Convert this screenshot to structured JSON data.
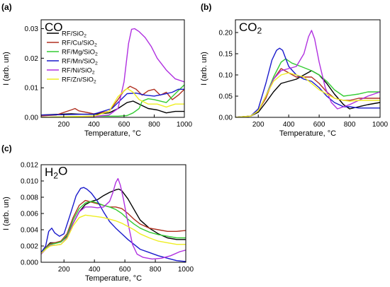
{
  "colors": {
    "RF/SiO2": "#000000",
    "RF/Cu/SiO2": "#b03020",
    "RF/Mg/SiO2": "#33cc33",
    "RF/Mn/SiO2": "#1a1acc",
    "RF/Ni/SiO2": "#b030e0",
    "RF/Zn/SiO2": "#eeee22"
  },
  "chart_data": [
    {
      "type": "line",
      "panel_letter": "(a)",
      "title": "CO",
      "xlabel": "Temperature, °C",
      "ylabel": "I (arb. un)",
      "xlim": [
        50,
        1000
      ],
      "ylim": [
        0,
        0.033
      ],
      "xticks": [
        "200",
        "400",
        "600",
        "800",
        "1000"
      ],
      "xtick_values": [
        200,
        400,
        600,
        800,
        1000
      ],
      "yticks": [
        "0.00",
        "0.01",
        "0.02",
        "0.03"
      ],
      "ytick_values": [
        0,
        0.01,
        0.02,
        0.03
      ],
      "legend": [
        "RF/SiO2",
        "RF/Cu/SiO2",
        "RF/Mg/SiO2",
        "RF/Mn/SiO2",
        "RF/Ni/SiO2",
        "RF/Zn/SiO2"
      ],
      "series": [
        {
          "name": "RF/SiO2",
          "x": [
            50,
            150,
            250,
            300,
            400,
            500,
            560,
            620,
            660,
            700,
            760,
            820,
            880,
            940,
            1000
          ],
          "y": [
            0.0008,
            0.001,
            0.0012,
            0.0011,
            0.001,
            0.0015,
            0.003,
            0.005,
            0.0055,
            0.0045,
            0.003,
            0.0025,
            0.0015,
            0.002,
            0.002
          ]
        },
        {
          "name": "RF/Cu/SiO2",
          "x": [
            50,
            150,
            220,
            250,
            275,
            300,
            400,
            500,
            560,
            600,
            640,
            680,
            720,
            760,
            800,
            840,
            880,
            920,
            960,
            1000
          ],
          "y": [
            0.0005,
            0.0008,
            0.002,
            0.0025,
            0.003,
            0.0022,
            0.0012,
            0.002,
            0.006,
            0.009,
            0.0105,
            0.0095,
            0.0075,
            0.009,
            0.0095,
            0.0075,
            0.0085,
            0.006,
            0.0075,
            0.0095
          ]
        },
        {
          "name": "RF/Mg/SiO2",
          "x": [
            50,
            200,
            400,
            560,
            620,
            660,
            700,
            720,
            760,
            800,
            880,
            940,
            1000
          ],
          "y": [
            0,
            0.0002,
            0.0004,
            0.0004,
            0.0006,
            0.0015,
            0.003,
            0.0055,
            0.0063,
            0.006,
            0.005,
            0.008,
            0.011
          ]
        },
        {
          "name": "RF/Mn/SiO2",
          "x": [
            50,
            200,
            400,
            520,
            580,
            620,
            680,
            740,
            800,
            860,
            920,
            960,
            1000
          ],
          "y": [
            0.0008,
            0.0009,
            0.0011,
            0.003,
            0.006,
            0.008,
            0.0082,
            0.0075,
            0.0072,
            0.0078,
            0.0085,
            0.0095,
            0.0095
          ]
        },
        {
          "name": "RF/Ni/SiO2",
          "x": [
            50,
            200,
            400,
            500,
            560,
            600,
            630,
            650,
            670,
            700,
            740,
            780,
            820,
            880,
            940,
            1000
          ],
          "y": [
            0,
            0.0001,
            0.0003,
            0.0008,
            0.003,
            0.012,
            0.025,
            0.0298,
            0.03,
            0.029,
            0.027,
            0.024,
            0.02,
            0.016,
            0.013,
            0.012
          ]
        },
        {
          "name": "RF/Zn/SiO2",
          "x": [
            50,
            200,
            400,
            500,
            560,
            620,
            660,
            700,
            760,
            820,
            880,
            940,
            1000
          ],
          "y": [
            0,
            0.0002,
            0.0004,
            0.002,
            0.007,
            0.0098,
            0.0085,
            0.006,
            0.0045,
            0.0045,
            0.0035,
            0.0045,
            0.0045
          ]
        }
      ]
    },
    {
      "type": "line",
      "panel_letter": "(b)",
      "title": "CO2",
      "xlabel": "Temperature, °C",
      "ylabel": "I (arb. un)",
      "xlim": [
        50,
        1000
      ],
      "ylim": [
        0,
        0.23
      ],
      "xticks": [
        "200",
        "400",
        "600",
        "800",
        "1000"
      ],
      "xtick_values": [
        200,
        400,
        600,
        800,
        1000
      ],
      "yticks": [
        "0.00",
        "0.05",
        "0.10",
        "0.15",
        "0.20"
      ],
      "ytick_values": [
        0,
        0.05,
        0.1,
        0.15,
        0.2
      ],
      "series": [
        {
          "name": "RF/SiO2",
          "x": [
            50,
            150,
            200,
            250,
            300,
            350,
            400,
            450,
            500,
            550,
            600,
            650,
            700,
            760,
            800,
            860,
            920,
            1000
          ],
          "y": [
            0,
            0.003,
            0.012,
            0.035,
            0.06,
            0.08,
            0.085,
            0.09,
            0.1,
            0.11,
            0.1,
            0.08,
            0.055,
            0.03,
            0.02,
            0.025,
            0.03,
            0.035
          ]
        },
        {
          "name": "RF/Cu/SiO2",
          "x": [
            50,
            150,
            200,
            250,
            300,
            350,
            400,
            450,
            500,
            550,
            600,
            650,
            700,
            760,
            800,
            860,
            920,
            1000
          ],
          "y": [
            0,
            0.003,
            0.015,
            0.045,
            0.09,
            0.115,
            0.105,
            0.095,
            0.095,
            0.095,
            0.08,
            0.06,
            0.045,
            0.04,
            0.04,
            0.045,
            0.045,
            0.045
          ]
        },
        {
          "name": "RF/Mg/SiO2",
          "x": [
            50,
            150,
            200,
            250,
            300,
            350,
            380,
            420,
            480,
            550,
            600,
            650,
            700,
            760,
            800,
            860,
            920,
            1000
          ],
          "y": [
            0,
            0.003,
            0.015,
            0.05,
            0.095,
            0.13,
            0.138,
            0.128,
            0.12,
            0.11,
            0.1,
            0.085,
            0.065,
            0.05,
            0.052,
            0.055,
            0.06,
            0.06
          ]
        },
        {
          "name": "RF/Mn/SiO2",
          "x": [
            50,
            150,
            200,
            250,
            290,
            320,
            340,
            360,
            400,
            450,
            500,
            550,
            600,
            650,
            700,
            760,
            800,
            860,
            920,
            1000
          ],
          "y": [
            0,
            0.003,
            0.02,
            0.08,
            0.135,
            0.158,
            0.163,
            0.158,
            0.12,
            0.1,
            0.09,
            0.085,
            0.07,
            0.05,
            0.035,
            0.025,
            0.025,
            0.022,
            0.022,
            0.022
          ]
        },
        {
          "name": "RF/Ni/SiO2",
          "x": [
            50,
            150,
            200,
            250,
            300,
            350,
            400,
            450,
            500,
            530,
            550,
            570,
            600,
            640,
            680,
            720,
            760,
            800,
            860,
            920,
            1000
          ],
          "y": [
            0,
            0.003,
            0.015,
            0.05,
            0.09,
            0.11,
            0.115,
            0.12,
            0.15,
            0.19,
            0.205,
            0.185,
            0.13,
            0.07,
            0.035,
            0.02,
            0.025,
            0.03,
            0.04,
            0.05,
            0.06
          ]
        },
        {
          "name": "RF/Zn/SiO2",
          "x": [
            50,
            150,
            200,
            250,
            300,
            350,
            400,
            450,
            500,
            550,
            600,
            650,
            700,
            760,
            800,
            860,
            920,
            1000
          ],
          "y": [
            0,
            0.003,
            0.015,
            0.05,
            0.085,
            0.1,
            0.105,
            0.1,
            0.095,
            0.08,
            0.065,
            0.055,
            0.045,
            0.04,
            0.038,
            0.04,
            0.04,
            0.04
          ]
        }
      ]
    },
    {
      "type": "line",
      "panel_letter": "(c)",
      "title": "H2O",
      "xlabel": "Temperature, °C",
      "ylabel": "I (arb. un)",
      "xlim": [
        50,
        1000
      ],
      "ylim": [
        0,
        0.012
      ],
      "xticks": [
        "200",
        "400",
        "600",
        "800",
        "1000"
      ],
      "xtick_values": [
        200,
        400,
        600,
        800,
        1000
      ],
      "yticks": [
        "0.000",
        "0.002",
        "0.004",
        "0.006",
        "0.008",
        "0.010",
        "0.012"
      ],
      "ytick_values": [
        0,
        0.002,
        0.004,
        0.006,
        0.008,
        0.01,
        0.012
      ],
      "series": [
        {
          "name": "RF/SiO2",
          "x": [
            50,
            80,
            110,
            140,
            180,
            220,
            260,
            300,
            340,
            380,
            420,
            460,
            500,
            540,
            560,
            580,
            620,
            660,
            700,
            760,
            820,
            880,
            940,
            1000
          ],
          "y": [
            0.0012,
            0.0018,
            0.0024,
            0.0024,
            0.0025,
            0.0032,
            0.0048,
            0.0062,
            0.0071,
            0.0075,
            0.0077,
            0.0082,
            0.0086,
            0.0089,
            0.009,
            0.0088,
            0.0078,
            0.0065,
            0.0052,
            0.0042,
            0.0035,
            0.003,
            0.0028,
            0.0028
          ]
        },
        {
          "name": "RF/Cu/SiO2",
          "x": [
            50,
            80,
            110,
            140,
            180,
            220,
            260,
            300,
            340,
            380,
            420,
            460,
            500,
            540,
            580,
            620,
            660,
            700,
            760,
            820,
            880,
            940,
            1000
          ],
          "y": [
            0.0012,
            0.0018,
            0.0023,
            0.0024,
            0.0026,
            0.0035,
            0.0055,
            0.007,
            0.0076,
            0.0074,
            0.0072,
            0.007,
            0.0068,
            0.0068,
            0.0066,
            0.006,
            0.0053,
            0.0047,
            0.0042,
            0.004,
            0.0038,
            0.0038,
            0.0039
          ]
        },
        {
          "name": "RF/Mg/SiO2",
          "x": [
            50,
            80,
            110,
            140,
            180,
            220,
            260,
            300,
            340,
            380,
            420,
            460,
            500,
            540,
            580,
            620,
            660,
            700,
            760,
            820,
            880,
            940,
            1000
          ],
          "y": [
            0.0011,
            0.0017,
            0.0022,
            0.0023,
            0.0025,
            0.0033,
            0.0052,
            0.0066,
            0.0073,
            0.0075,
            0.0073,
            0.007,
            0.0068,
            0.0065,
            0.006,
            0.0053,
            0.0047,
            0.0042,
            0.0037,
            0.0034,
            0.0032,
            0.003,
            0.003
          ]
        },
        {
          "name": "RF/Mn/SiO2",
          "x": [
            50,
            80,
            100,
            120,
            140,
            170,
            200,
            240,
            280,
            310,
            330,
            350,
            380,
            420,
            460,
            500,
            540,
            580,
            620,
            660,
            700,
            760,
            820,
            880,
            940,
            1000
          ],
          "y": [
            0.0012,
            0.002,
            0.0038,
            0.0042,
            0.0036,
            0.0032,
            0.0035,
            0.0058,
            0.0082,
            0.0091,
            0.0092,
            0.009,
            0.0085,
            0.0075,
            0.0062,
            0.005,
            0.0042,
            0.0035,
            0.0028,
            0.0022,
            0.0016,
            0.0012,
            0.0008,
            0.0005,
            0.0002,
            0.0001
          ]
        },
        {
          "name": "RF/Ni/SiO2",
          "x": [
            50,
            80,
            110,
            140,
            180,
            220,
            260,
            300,
            340,
            380,
            420,
            460,
            500,
            520,
            540,
            555,
            570,
            590,
            610,
            630,
            650,
            680,
            720,
            780,
            840,
            900,
            960,
            1000
          ],
          "y": [
            0.001,
            0.0016,
            0.0021,
            0.0021,
            0.0022,
            0.003,
            0.0048,
            0.0062,
            0.0068,
            0.0068,
            0.0067,
            0.0068,
            0.0075,
            0.0085,
            0.0098,
            0.0103,
            0.0095,
            0.0078,
            0.0058,
            0.004,
            0.0022,
            0.001,
            0.0006,
            0.0004,
            0.0005,
            0.0008,
            0.0013,
            0.0015
          ]
        },
        {
          "name": "RF/Zn/SiO2",
          "x": [
            50,
            80,
            110,
            140,
            180,
            220,
            260,
            300,
            340,
            380,
            420,
            460,
            500,
            540,
            580,
            620,
            660,
            700,
            760,
            820,
            880,
            940,
            1000
          ],
          "y": [
            0.0011,
            0.0016,
            0.002,
            0.0021,
            0.0022,
            0.0029,
            0.0045,
            0.0055,
            0.0058,
            0.0057,
            0.0056,
            0.0055,
            0.0053,
            0.0051,
            0.0048,
            0.0044,
            0.004,
            0.0035,
            0.003,
            0.0026,
            0.0024,
            0.0022,
            0.0022
          ]
        }
      ]
    }
  ]
}
